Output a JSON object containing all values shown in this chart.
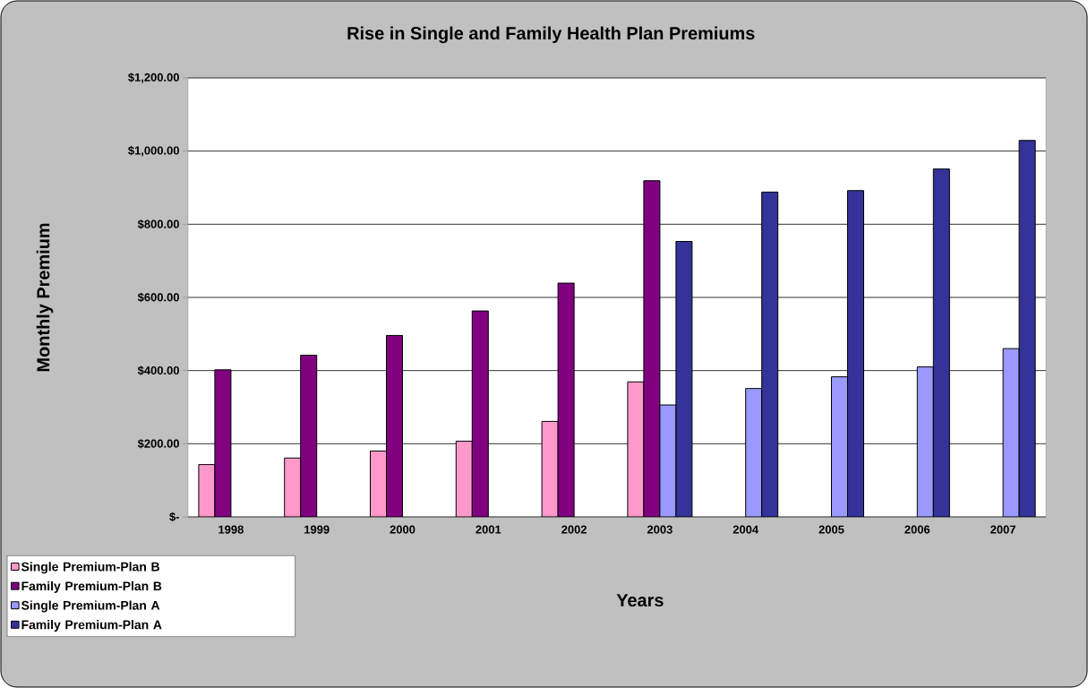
{
  "chart_data": {
    "type": "bar",
    "title": "Rise in Single and Family Health Plan Premiums",
    "xlabel": "Years",
    "ylabel": "Monthly Premium",
    "categories": [
      "1998",
      "1999",
      "2000",
      "2001",
      "2002",
      "2003",
      "2004",
      "2005",
      "2006",
      "2007"
    ],
    "series": [
      {
        "name": "Single Premium-Plan B",
        "color": "#ff99cc",
        "values": [
          143,
          161,
          180,
          207,
          261,
          369,
          null,
          null,
          null,
          null
        ]
      },
      {
        "name": "Family Premium-Plan B",
        "color": "#800080",
        "values": [
          402,
          442,
          496,
          563,
          639,
          919,
          null,
          null,
          null,
          null
        ]
      },
      {
        "name": "Single Premium-Plan A",
        "color": "#9999ff",
        "values": [
          null,
          null,
          null,
          null,
          null,
          306,
          351,
          383,
          410,
          460
        ]
      },
      {
        "name": "Family Premium-Plan A",
        "color": "#333399",
        "values": [
          null,
          null,
          null,
          null,
          null,
          753,
          888,
          892,
          951,
          1029
        ]
      }
    ],
    "ylim": [
      0,
      1200
    ],
    "yticks": [
      {
        "value": 0,
        "label": "$-"
      },
      {
        "value": 200,
        "label": "$200.00"
      },
      {
        "value": 400,
        "label": "$400.00"
      },
      {
        "value": 600,
        "label": "$600.00"
      },
      {
        "value": 800,
        "label": "$800.00"
      },
      {
        "value": 1000,
        "label": "$1,000.00"
      },
      {
        "value": 1200,
        "label": "$1,200.00"
      }
    ],
    "grid": "y",
    "legend": "bottom left"
  }
}
